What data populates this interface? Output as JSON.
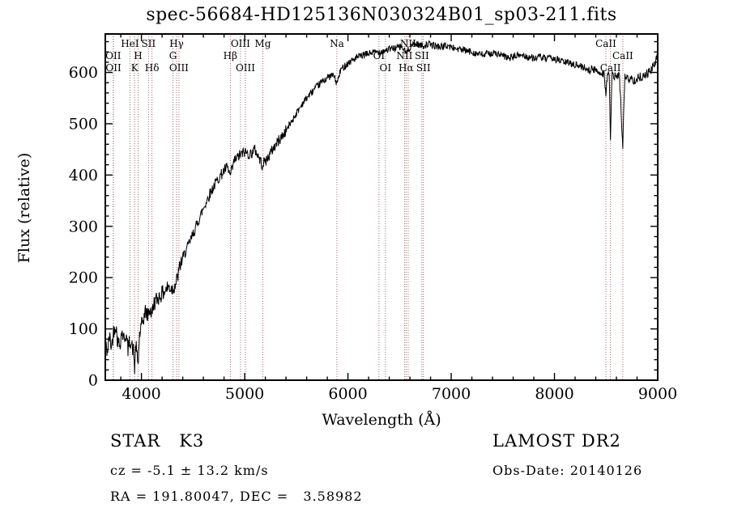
{
  "title": "spec-56684-HD125136N030324B01_sp03-211.fits",
  "annotations": {
    "class_label": "STAR   K3",
    "survey": "LAMOST DR2",
    "cz": "cz = -5.1 ± 13.2 km/s",
    "obs_date": "Obs-Date: 20140126",
    "radec": "RA = 191.80047, DEC =   3.58982"
  },
  "chart_data": {
    "type": "line",
    "title": "spec-56684-HD125136N030324B01_sp03-211.fits",
    "xlabel": "Wavelength (Å)",
    "ylabel": "Flux (relative)",
    "xlim": [
      3650,
      9000
    ],
    "ylim": [
      0,
      675
    ],
    "xticks": [
      4000,
      5000,
      6000,
      7000,
      8000,
      9000
    ],
    "yticks": [
      0,
      100,
      200,
      300,
      400,
      500,
      600
    ],
    "x_minor_step": 200,
    "y_minor_step": 20,
    "grid": false,
    "legend": "none",
    "curve_color": "#000000",
    "marker_line_color": "#9c6b6b",
    "frame_color": "#000000",
    "noise_zones": [
      [
        4400,
        16
      ],
      [
        5400,
        11
      ],
      [
        8300,
        7
      ],
      [
        9000,
        9
      ]
    ],
    "series": [
      {
        "name": "flux",
        "points": [
          [
            3650,
            70
          ],
          [
            3670,
            55
          ],
          [
            3690,
            85
          ],
          [
            3710,
            65
          ],
          [
            3730,
            95
          ],
          [
            3750,
            110
          ],
          [
            3770,
            75
          ],
          [
            3790,
            70
          ],
          [
            3810,
            95
          ],
          [
            3830,
            80
          ],
          [
            3850,
            90
          ],
          [
            3870,
            60
          ],
          [
            3890,
            80
          ],
          [
            3910,
            65
          ],
          [
            3925,
            55
          ],
          [
            3933,
            18
          ],
          [
            3945,
            70
          ],
          [
            3958,
            45
          ],
          [
            3968,
            28
          ],
          [
            3980,
            85
          ],
          [
            4000,
            105
          ],
          [
            4020,
            120
          ],
          [
            4040,
            135
          ],
          [
            4060,
            125
          ],
          [
            4080,
            140
          ],
          [
            4100,
            128
          ],
          [
            4120,
            150
          ],
          [
            4150,
            158
          ],
          [
            4180,
            165
          ],
          [
            4220,
            172
          ],
          [
            4260,
            182
          ],
          [
            4300,
            178
          ],
          [
            4340,
            192
          ],
          [
            4380,
            228
          ],
          [
            4420,
            248
          ],
          [
            4460,
            265
          ],
          [
            4500,
            285
          ],
          [
            4550,
            310
          ],
          [
            4600,
            335
          ],
          [
            4650,
            358
          ],
          [
            4700,
            378
          ],
          [
            4750,
            395
          ],
          [
            4800,
            408
          ],
          [
            4830,
            415
          ],
          [
            4861,
            398
          ],
          [
            4900,
            428
          ],
          [
            4950,
            438
          ],
          [
            5000,
            445
          ],
          [
            5050,
            440
          ],
          [
            5100,
            450
          ],
          [
            5170,
            420
          ],
          [
            5220,
            432
          ],
          [
            5270,
            450
          ],
          [
            5320,
            465
          ],
          [
            5380,
            480
          ],
          [
            5440,
            500
          ],
          [
            5500,
            520
          ],
          [
            5560,
            540
          ],
          [
            5620,
            555
          ],
          [
            5680,
            568
          ],
          [
            5740,
            580
          ],
          [
            5800,
            590
          ],
          [
            5860,
            595
          ],
          [
            5893,
            578
          ],
          [
            5930,
            605
          ],
          [
            5980,
            615
          ],
          [
            6040,
            624
          ],
          [
            6100,
            630
          ],
          [
            6160,
            634
          ],
          [
            6220,
            638
          ],
          [
            6280,
            640
          ],
          [
            6340,
            642
          ],
          [
            6400,
            645
          ],
          [
            6460,
            648
          ],
          [
            6520,
            650
          ],
          [
            6563,
            638
          ],
          [
            6610,
            652
          ],
          [
            6660,
            656
          ],
          [
            6720,
            652
          ],
          [
            6780,
            655
          ],
          [
            6840,
            652
          ],
          [
            6900,
            650
          ],
          [
            6960,
            652
          ],
          [
            7020,
            648
          ],
          [
            7080,
            645
          ],
          [
            7140,
            642
          ],
          [
            7200,
            640
          ],
          [
            7260,
            636
          ],
          [
            7320,
            634
          ],
          [
            7380,
            638
          ],
          [
            7440,
            636
          ],
          [
            7500,
            632
          ],
          [
            7560,
            628
          ],
          [
            7620,
            632
          ],
          [
            7680,
            634
          ],
          [
            7740,
            630
          ],
          [
            7800,
            628
          ],
          [
            7860,
            630
          ],
          [
            7920,
            626
          ],
          [
            7980,
            628
          ],
          [
            8040,
            624
          ],
          [
            8100,
            620
          ],
          [
            8160,
            618
          ],
          [
            8220,
            614
          ],
          [
            8280,
            610
          ],
          [
            8340,
            606
          ],
          [
            8400,
            604
          ],
          [
            8450,
            600
          ],
          [
            8480,
            598
          ],
          [
            8498,
            560
          ],
          [
            8515,
            598
          ],
          [
            8530,
            596
          ],
          [
            8542,
            470
          ],
          [
            8558,
            594
          ],
          [
            8600,
            592
          ],
          [
            8630,
            592
          ],
          [
            8662,
            455
          ],
          [
            8680,
            590
          ],
          [
            8720,
            588
          ],
          [
            8760,
            585
          ],
          [
            8800,
            588
          ],
          [
            8840,
            592
          ],
          [
            8880,
            596
          ],
          [
            8920,
            600
          ],
          [
            8960,
            612
          ],
          [
            9000,
            632
          ]
        ]
      }
    ],
    "spectral_lines": [
      {
        "label": "HeI",
        "wavelength": 3889,
        "row": 0
      },
      {
        "label": "SII",
        "wavelength": 4069,
        "row": 0
      },
      {
        "label": "Hγ",
        "wavelength": 4340,
        "row": 0
      },
      {
        "label": "OIII",
        "wavelength": 4959,
        "row": 0
      },
      {
        "label": "Mg",
        "wavelength": 5175,
        "row": 0
      },
      {
        "label": "Na",
        "wavelength": 5893,
        "row": 0
      },
      {
        "label": "NII",
        "wavelength": 6583,
        "row": 0
      },
      {
        "label": "CaII",
        "wavelength": 8498,
        "row": 0
      },
      {
        "label": "OII",
        "wavelength": 3727,
        "row": 1
      },
      {
        "label": "H",
        "wavelength": 3968,
        "row": 1
      },
      {
        "label": "G",
        "wavelength": 4305,
        "row": 1
      },
      {
        "label": "Hβ",
        "wavelength": 4861,
        "row": 1
      },
      {
        "label": "OI",
        "wavelength": 6300,
        "row": 1
      },
      {
        "label": "NII",
        "wavelength": 6548,
        "row": 1
      },
      {
        "label": "SII",
        "wavelength": 6716,
        "row": 1
      },
      {
        "label": "CaII",
        "wavelength": 8662,
        "row": 1
      },
      {
        "label": "OII",
        "wavelength": 3729,
        "row": 2
      },
      {
        "label": "K",
        "wavelength": 3934,
        "row": 2
      },
      {
        "label": "Hδ",
        "wavelength": 4102,
        "row": 2
      },
      {
        "label": "OIII",
        "wavelength": 4363,
        "row": 2
      },
      {
        "label": "OIII",
        "wavelength": 5007,
        "row": 2
      },
      {
        "label": "OI",
        "wavelength": 6363,
        "row": 2
      },
      {
        "label": "Hα",
        "wavelength": 6563,
        "row": 2
      },
      {
        "label": "SII",
        "wavelength": 6731,
        "row": 2
      },
      {
        "label": "CaII",
        "wavelength": 8542,
        "row": 2
      }
    ]
  }
}
